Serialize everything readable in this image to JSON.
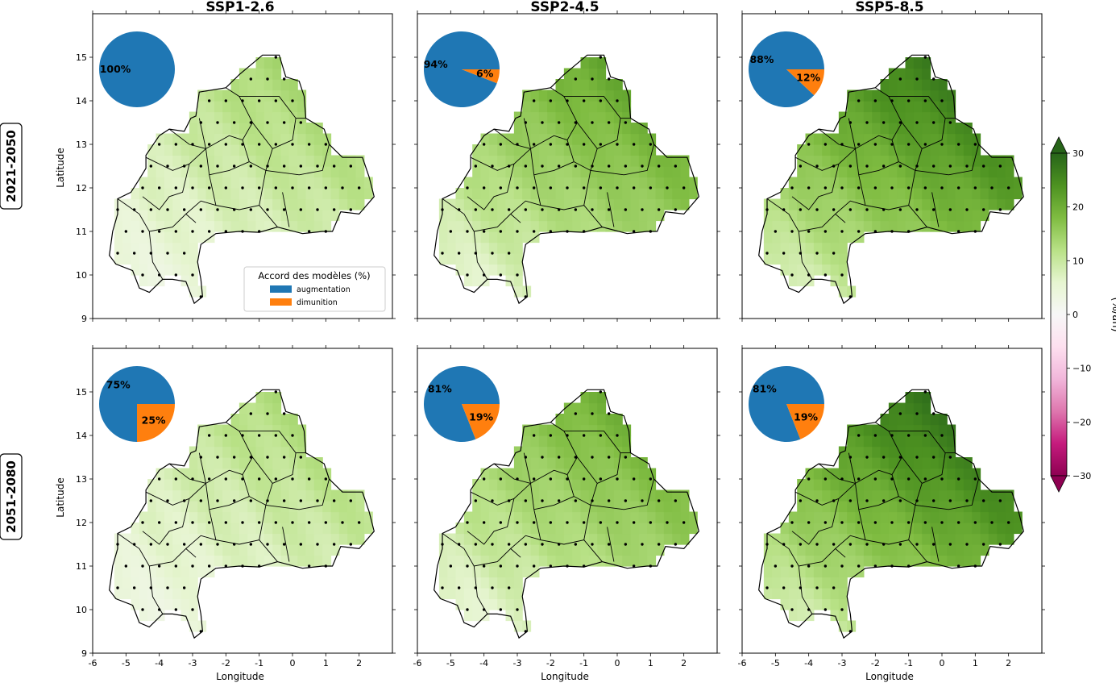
{
  "figure": {
    "columns": [
      "SSP1-2.6",
      "SSP2-4.5",
      "SSP5-8.5"
    ],
    "rows": [
      "2021-2050",
      "2051-2080"
    ],
    "xlabel": "Longitude",
    "ylabel": "Latitude",
    "xlim": [
      -6,
      3
    ],
    "ylim": [
      9,
      16
    ],
    "x_ticks": [
      -6,
      -5,
      -4,
      -3,
      -2,
      -1,
      0,
      1,
      2
    ],
    "y_ticks": [
      9,
      10,
      11,
      12,
      13,
      14,
      15
    ],
    "legend": {
      "title": "Accord des modèles (%)",
      "placement": "lower-right of first panel",
      "entries": [
        {
          "label": "augmentation",
          "color": "#1f77b4"
        },
        {
          "label": "dimunition",
          "color": "#ff7f0e"
        }
      ]
    },
    "colorbar": {
      "label": "(%/an)",
      "range": [
        -30,
        30
      ],
      "ticks": [
        -30,
        -20,
        -10,
        0,
        10,
        20,
        30
      ],
      "cmap": "PiYG",
      "extend": "both"
    }
  },
  "chart_data": {
    "type": "map",
    "description_free": true,
    "panels": [
      {
        "row": "2021-2050",
        "scenario": "SSP1-2.6",
        "pie": {
          "augmentation": 100,
          "dimunition": 0
        },
        "pie_labels": [
          "100%",
          ""
        ],
        "intensity": 0.45
      },
      {
        "row": "2021-2050",
        "scenario": "SSP2-4.5",
        "pie": {
          "augmentation": 94,
          "dimunition": 6
        },
        "pie_labels": [
          "94%",
          "6%"
        ],
        "intensity": 0.75
      },
      {
        "row": "2021-2050",
        "scenario": "SSP5-8.5",
        "pie": {
          "augmentation": 88,
          "dimunition": 12
        },
        "pie_labels": [
          "88%",
          "12%"
        ],
        "intensity": 1.0
      },
      {
        "row": "2051-2080",
        "scenario": "SSP1-2.6",
        "pie": {
          "augmentation": 75,
          "dimunition": 25
        },
        "pie_labels": [
          "75%",
          "25%"
        ],
        "intensity": 0.42
      },
      {
        "row": "2051-2080",
        "scenario": "SSP2-4.5",
        "pie": {
          "augmentation": 81,
          "dimunition": 19
        },
        "pie_labels": [
          "81%",
          "19%"
        ],
        "intensity": 0.7
      },
      {
        "row": "2051-2080",
        "scenario": "SSP5-8.5",
        "pie": {
          "augmentation": 81,
          "dimunition": 19
        },
        "pie_labels": [
          "81%",
          "19%"
        ],
        "intensity": 1.05
      }
    ]
  }
}
